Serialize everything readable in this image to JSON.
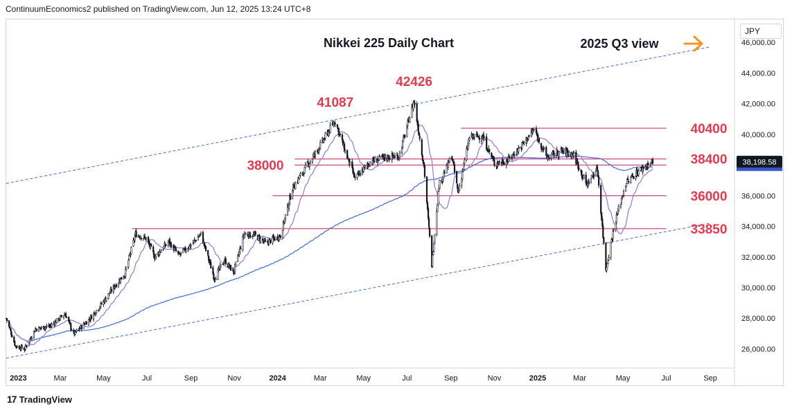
{
  "header": {
    "publisher_text": "ContinuumEconomics2 published on TradingView.com, Jun 12, 2025 13:24 UTC+8"
  },
  "footer": {
    "brand": "TradingView"
  },
  "currency": "JPY",
  "last_price_label": "38,198.58",
  "colors": {
    "candle_up": "#131722",
    "candle_down": "#131722",
    "ma_short": "#9b7fd6",
    "ma_long": "#4a72d9",
    "level_line": "#c2185b",
    "level_text": "#e53950",
    "channel": "#3d6fd9",
    "arrow": "#f7931e",
    "price_tag": "#131722"
  },
  "chart_data": {
    "type": "candlestick",
    "title": "Nikkei 225 Daily Chart",
    "subtitle": "2025 Q3 view",
    "ylabel": "JPY",
    "ylim": [
      24800,
      47500
    ],
    "y_ticks": [
      "26,000.00",
      "28,000.00",
      "30,000.00",
      "32,000.00",
      "34,000.00",
      "36,000.00",
      "38,000.00",
      "40,000.00",
      "42,000.00",
      "44,000.00",
      "46,000.00"
    ],
    "y_tick_values": [
      26000,
      28000,
      30000,
      32000,
      34000,
      36000,
      38000,
      40000,
      42000,
      44000,
      46000
    ],
    "x_ticks": [
      "2023",
      "Mar",
      "May",
      "Jul",
      "Sep",
      "Nov",
      "2024",
      "Mar",
      "May",
      "Jul",
      "Sep",
      "Nov",
      "2025",
      "Mar",
      "May",
      "Jul",
      "Sep"
    ],
    "x_tick_dates": [
      "2023-01-01",
      "2023-03-01",
      "2023-05-01",
      "2023-07-01",
      "2023-09-01",
      "2023-11-01",
      "2024-01-01",
      "2024-03-01",
      "2024-05-01",
      "2024-07-01",
      "2024-09-01",
      "2024-11-01",
      "2025-01-01",
      "2025-03-01",
      "2025-05-01",
      "2025-07-01",
      "2025-09-01"
    ],
    "x_range": [
      "2022-12-15",
      "2025-10-05"
    ],
    "close_path": [
      [
        "2022-12-15",
        28000
      ],
      [
        "2022-12-28",
        26200
      ],
      [
        "2023-01-10",
        26000
      ],
      [
        "2023-01-25",
        27300
      ],
      [
        "2023-02-15",
        27500
      ],
      [
        "2023-03-08",
        28300
      ],
      [
        "2023-03-20",
        26950
      ],
      [
        "2023-04-12",
        28000
      ],
      [
        "2023-05-01",
        29100
      ],
      [
        "2023-05-15",
        30000
      ],
      [
        "2023-05-31",
        30900
      ],
      [
        "2023-06-15",
        33500
      ],
      [
        "2023-06-30",
        33200
      ],
      [
        "2023-07-12",
        32000
      ],
      [
        "2023-08-01",
        33000
      ],
      [
        "2023-08-15",
        32100
      ],
      [
        "2023-09-01",
        32800
      ],
      [
        "2023-09-15",
        33500
      ],
      [
        "2023-10-04",
        30600
      ],
      [
        "2023-10-18",
        31800
      ],
      [
        "2023-10-31",
        31000
      ],
      [
        "2023-11-15",
        33500
      ],
      [
        "2023-12-01",
        33400
      ],
      [
        "2023-12-15",
        32900
      ],
      [
        "2024-01-05",
        33400
      ],
      [
        "2024-01-22",
        36500
      ],
      [
        "2024-02-15",
        38200
      ],
      [
        "2024-02-29",
        39200
      ],
      [
        "2024-03-22",
        40900
      ],
      [
        "2024-04-05",
        38900
      ],
      [
        "2024-04-19",
        37100
      ],
      [
        "2024-05-10",
        38200
      ],
      [
        "2024-06-01",
        38500
      ],
      [
        "2024-06-20",
        38600
      ],
      [
        "2024-07-11",
        42200
      ],
      [
        "2024-07-25",
        37900
      ],
      [
        "2024-08-05",
        31500
      ],
      [
        "2024-08-15",
        36700
      ],
      [
        "2024-09-02",
        38600
      ],
      [
        "2024-09-11",
        36200
      ],
      [
        "2024-09-27",
        39800
      ],
      [
        "2024-10-15",
        39900
      ],
      [
        "2024-11-01",
        38100
      ],
      [
        "2024-11-20",
        38300
      ],
      [
        "2024-12-10",
        39300
      ],
      [
        "2024-12-27",
        40300
      ],
      [
        "2025-01-14",
        38500
      ],
      [
        "2025-02-03",
        38900
      ],
      [
        "2025-02-20",
        38700
      ],
      [
        "2025-03-11",
        36700
      ],
      [
        "2025-03-26",
        37800
      ],
      [
        "2025-04-07",
        31200
      ],
      [
        "2025-04-20",
        34300
      ],
      [
        "2025-05-05",
        36800
      ],
      [
        "2025-05-20",
        37500
      ],
      [
        "2025-06-01",
        37900
      ],
      [
        "2025-06-12",
        38198.58
      ]
    ],
    "levels": [
      {
        "label": "40400",
        "value": 40400,
        "from": "2024-09-15",
        "to": "2025-07-01"
      },
      {
        "label": "38400",
        "value": 38400,
        "from": "2024-01-25",
        "to": "2025-07-01"
      },
      {
        "label": "38000",
        "value": 38000,
        "from": "2024-01-25",
        "to": "2025-07-01"
      },
      {
        "label": "36000",
        "value": 36000,
        "from": "2023-12-25",
        "to": "2025-07-01"
      },
      {
        "label": "33850",
        "value": 33850,
        "from": "2023-06-10",
        "to": "2025-07-01"
      }
    ],
    "peak_labels": [
      {
        "label": "41087",
        "value": 41087,
        "date": "2024-03-22"
      },
      {
        "label": "42426",
        "value": 42426,
        "date": "2024-07-11"
      }
    ],
    "channel_lines": [
      {
        "from": [
          "2022-12-15",
          36800
        ],
        "to": [
          "2025-08-31",
          45700
        ]
      },
      {
        "from": [
          "2022-12-15",
          25400
        ],
        "to": [
          "2025-08-31",
          34200
        ]
      }
    ]
  }
}
